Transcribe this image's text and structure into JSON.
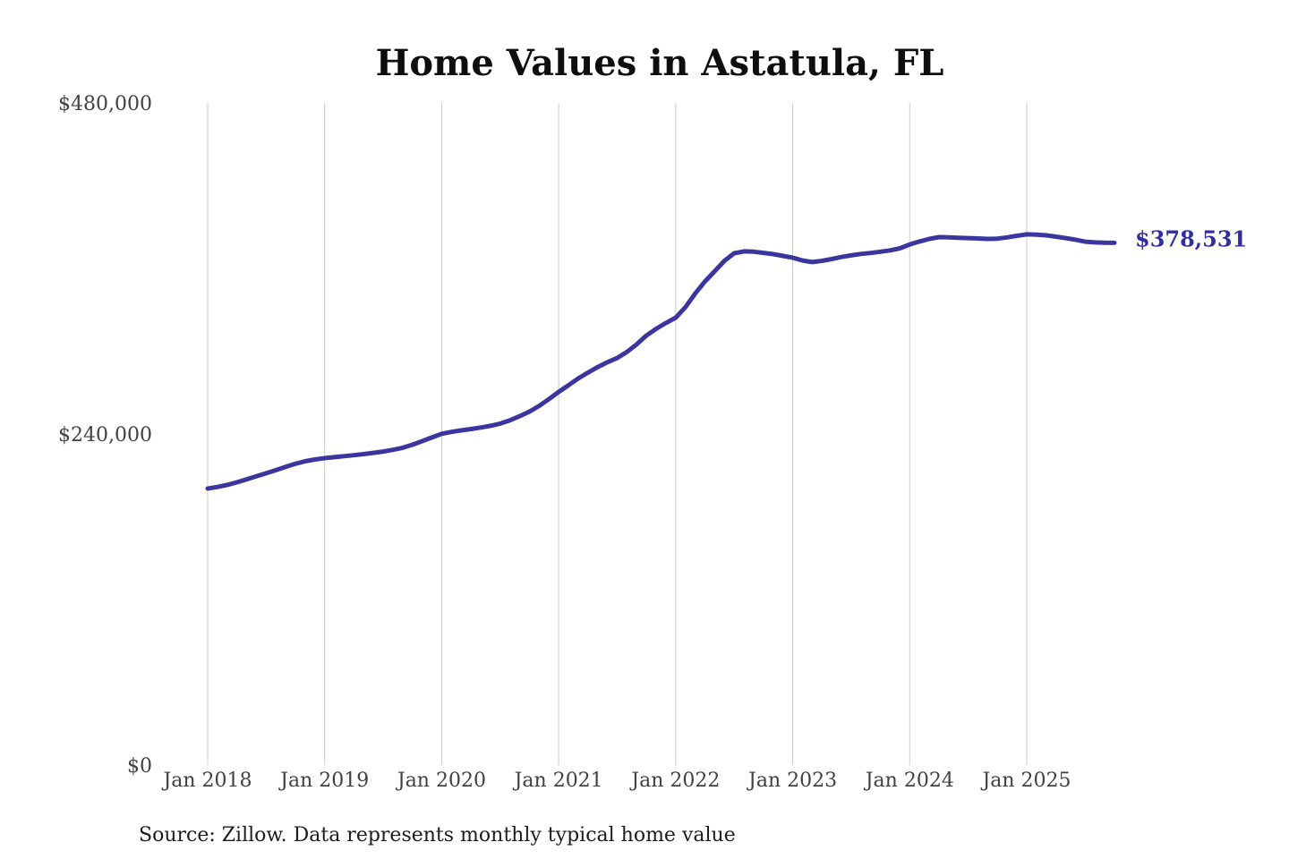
{
  "chart_data": {
    "type": "line",
    "title": "Home Values in Astatula, FL",
    "source_note": "Source: Zillow. Data represents monthly typical home value",
    "series_name": "Monthly typical home value",
    "x_unit": "month",
    "x_start": "Jan 2018",
    "x_end": "Oct 2025",
    "x_tick_labels": [
      "Jan 2018",
      "Jan 2019",
      "Jan 2020",
      "Jan 2021",
      "Jan 2022",
      "Jan 2023",
      "Jan 2024",
      "Jan 2025"
    ],
    "y_ticks": [
      {
        "label": "$480,000",
        "value": 480000
      },
      {
        "label": "$240,000",
        "value": 240000
      },
      {
        "label": "$0",
        "value": 0
      }
    ],
    "ylim": [
      0,
      480000
    ],
    "grid": "vertical-year-lines",
    "legend_position": "none",
    "end_label": "$378,531",
    "end_value": 378531,
    "line_color": "#3b35a0",
    "end_label_color": "#322e9e",
    "grid_color": "#cbcbcb",
    "values": [
      200400,
      201600,
      203100,
      205000,
      207100,
      209300,
      211500,
      213800,
      216200,
      218400,
      220200,
      221500,
      222500,
      223200,
      223900,
      224600,
      225400,
      226300,
      227300,
      228500,
      230000,
      232200,
      234800,
      237500,
      240100,
      241500,
      242600,
      243600,
      244700,
      245900,
      247500,
      249900,
      252900,
      256200,
      260400,
      265300,
      270500,
      275300,
      280200,
      284500,
      288500,
      292000,
      295100,
      299500,
      305000,
      311400,
      316300,
      320500,
      324300,
      332000,
      341800,
      350500,
      358000,
      365500,
      371000,
      372400,
      372100,
      371300,
      370400,
      369100,
      367800,
      365800,
      364600,
      365500,
      366800,
      368300,
      369500,
      370500,
      371200,
      372100,
      373100,
      374600,
      377400,
      379500,
      381400,
      382700,
      382500,
      382200,
      382000,
      381700,
      381400,
      381600,
      382500,
      383700,
      384700,
      384500,
      384000,
      383000,
      382000,
      380800,
      379400,
      378900,
      378600,
      378531
    ]
  }
}
